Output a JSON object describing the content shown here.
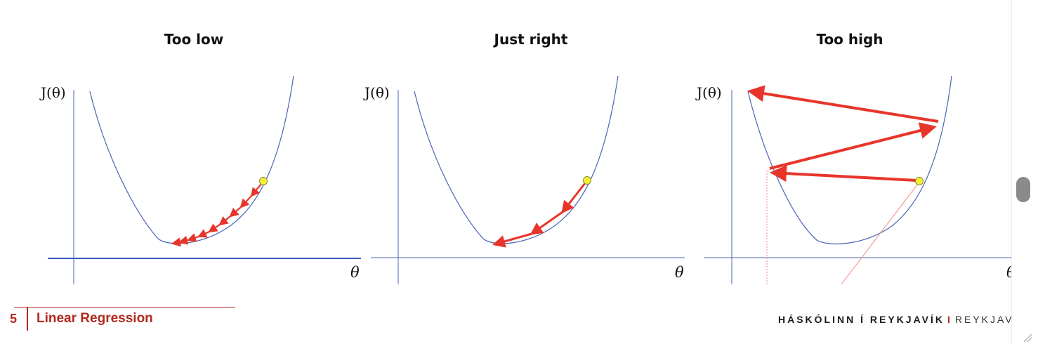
{
  "panels": [
    {
      "title": "Too low",
      "ylabel": "J(θ)",
      "xlabel": "θ"
    },
    {
      "title": "Just right",
      "ylabel": "J(θ)",
      "xlabel": "θ"
    },
    {
      "title": "Too high",
      "ylabel": "J(θ)",
      "xlabel": "θ"
    }
  ],
  "footer": {
    "page_number": "5",
    "title": "Linear Regression",
    "university": "HÁSKÓLINN Í REYKJAVÍK",
    "separator": "I",
    "city": "REYKJAVIK"
  },
  "colors": {
    "curve": "#4a64b4",
    "axis": "#4a64b4",
    "arrow": "#e8352b",
    "point": "#f3ef3a",
    "brand": "#b02a20"
  }
}
